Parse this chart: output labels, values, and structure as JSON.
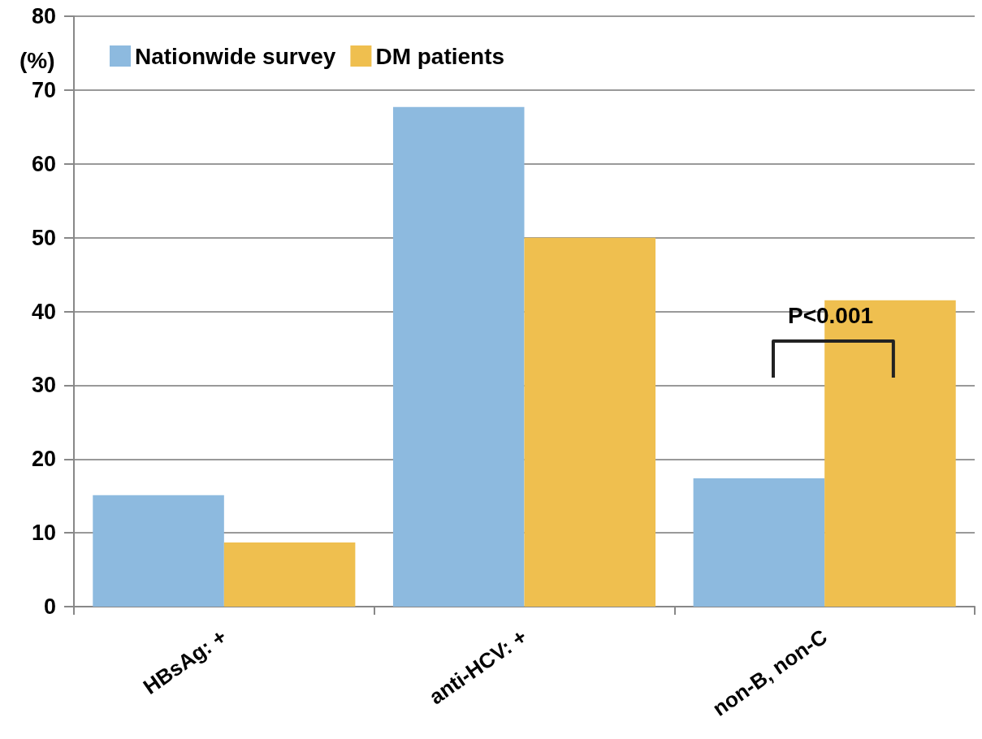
{
  "chart_data": {
    "type": "bar",
    "ylabel": "(%)",
    "categories": [
      "HBsAg: +",
      "anti-HCV: +",
      "non-B, non-C"
    ],
    "series": [
      {
        "name": "Nationwide survey",
        "color": "#8dbadf",
        "values": [
          15.1,
          67.7,
          17.4
        ]
      },
      {
        "name": "DM patients",
        "color": "#efbf4f",
        "values": [
          8.7,
          50.0,
          41.5
        ]
      }
    ],
    "ylim": [
      0,
      80
    ],
    "yticks": [
      0,
      10,
      20,
      30,
      40,
      50,
      60,
      70,
      80
    ],
    "grid": "y",
    "legend": "top left",
    "annotations": [
      "P<0.001"
    ]
  }
}
